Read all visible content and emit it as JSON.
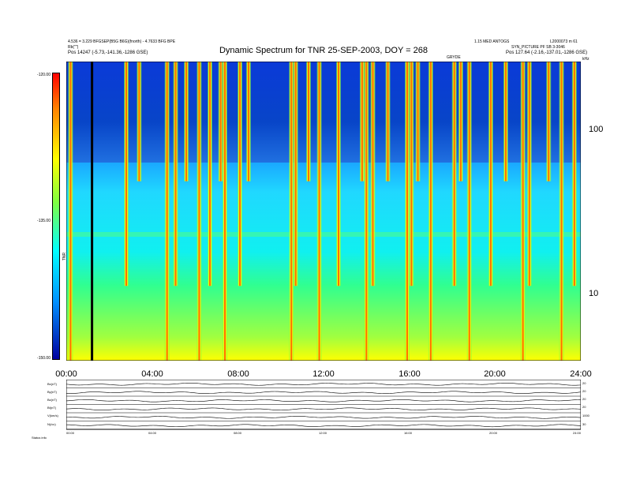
{
  "header": {
    "title": "Dynamic Spectrum for TNR 25-SEP-2003, DOY = 268",
    "top_left_lines": [
      "4.536 = 3.229 BFGSEP(B5G B6G)(fnorth) - 4.7633 BFG BPE",
      "Rb(\"\")",
      "Pos    14247 (-5.73,-141.36,-1286 GSE)"
    ],
    "top_right_lines": [
      "1.15 MED ANTOGS",
      "L2000073 m 61",
      "SYN_PICTURE PF SB 3-3046",
      "Pos    127.64 (-2.16,-137.01,-1286 GSE)"
    ],
    "side_labels": [
      "GRYDE",
      "kHz",
      "TNR"
    ]
  },
  "chart_data": {
    "type": "heatmap",
    "title": "Dynamic Spectrum for TNR 25-SEP-2003, DOY = 268",
    "x_tick_labels": [
      "00:00",
      "04:00",
      "08:00",
      "12:00",
      "16:00",
      "20:00",
      "24:00"
    ],
    "x_range_hours": [
      0,
      24
    ],
    "y_right_label": "kHz",
    "y_right_tick_labels": [
      "100",
      "10"
    ],
    "y_right_range": [
      4,
      300
    ],
    "y_right_scale": "log",
    "colorbar_label": "TNR",
    "colorbar_tick_labels": [
      "-120.00",
      "-135.00",
      "-150.00"
    ],
    "colorbar_range": [
      -150,
      -120
    ],
    "colorbar_colors": [
      "#0000a0",
      "#0090ff",
      "#00ffff",
      "#80ff40",
      "#ffff00",
      "#ff8000",
      "#ff0000"
    ],
    "event_columns_hours": [
      0.2,
      2.8,
      3.4,
      4.7,
      5.1,
      5.6,
      6.2,
      6.7,
      7.2,
      7.4,
      8.1,
      8.5,
      10.5,
      10.7,
      11.3,
      11.8,
      12.7,
      13.8,
      14.0,
      14.3,
      15.0,
      15.9,
      16.1,
      16.4,
      17.0,
      18.1,
      18.4,
      18.8,
      19.8,
      20.5,
      21.3,
      21.6,
      22.5,
      23.1,
      23.7
    ],
    "black_line_hours": 1.2,
    "bottom_panels": [
      {
        "label": "Bt(nT)",
        "right_ticks": [
          "20",
          "0"
        ]
      },
      {
        "label": "Bx(nT)",
        "right_ticks": [
          "20",
          "-20"
        ]
      },
      {
        "label": "By(nT)",
        "right_ticks": [
          "20",
          "-20"
        ]
      },
      {
        "label": "Bz(nT)",
        "right_ticks": [
          "20",
          "-20"
        ]
      },
      {
        "label": "V(km/s)",
        "right_ticks": [
          "1000",
          "200"
        ]
      },
      {
        "label": "N(/cc)",
        "right_ticks": [
          "30",
          "0"
        ]
      }
    ],
    "bottom_x_tick_labels": [
      "00:00",
      "04:00",
      "08:00",
      "12:00",
      "16:00",
      "20:00",
      "24:00"
    ],
    "bottom_footer": "Status   info"
  }
}
